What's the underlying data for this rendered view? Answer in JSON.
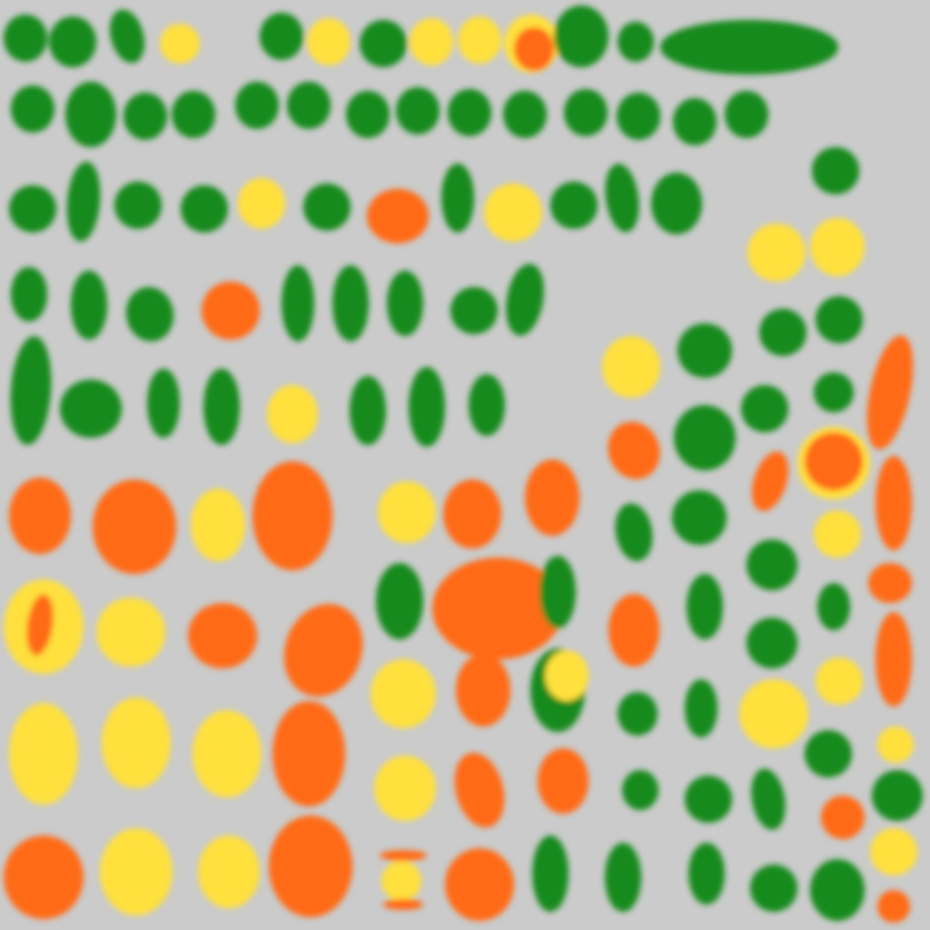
{
  "background": "#cbcbcb",
  "palette": {
    "green": "#128a1c",
    "yellow": "#ffe03c",
    "orange": "#ff6a14"
  },
  "blob_counts": {
    "green": 84,
    "yellow": 34,
    "orange": 37
  }
}
